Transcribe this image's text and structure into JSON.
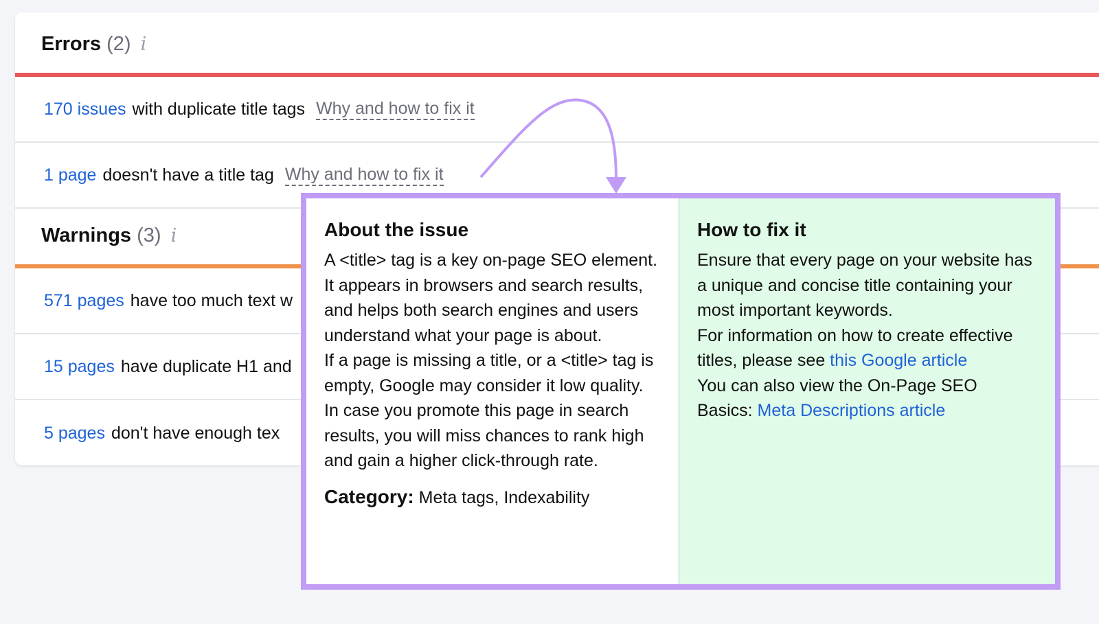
{
  "errors": {
    "title": "Errors",
    "count": "(2)",
    "info_icon": "info-icon",
    "accent": "#e85656",
    "rows": [
      {
        "link": "170 issues",
        "text": "with duplicate title tags",
        "why": "Why and how to fix it"
      },
      {
        "link": "1 page",
        "text": "doesn't have a title tag",
        "why": "Why and how to fix it"
      }
    ]
  },
  "warnings": {
    "title": "Warnings",
    "count": "(3)",
    "info_icon": "info-icon",
    "accent": "#f0914a",
    "rows": [
      {
        "link": "571 pages",
        "text": "have too much text w"
      },
      {
        "link": "15 pages",
        "text": "have duplicate H1 and"
      },
      {
        "link": "5 pages",
        "text": "don't have enough tex"
      }
    ]
  },
  "popup": {
    "about_title": "About the issue",
    "about_p1": "A <title> tag is a key on-page SEO element. It appears in browsers and search results, and helps both search engines and users understand what your page is about.",
    "about_p2": "If a page is missing a title, or a <title> tag is empty, Google may consider it low quality. In case you promote this page in search results, you will miss chances to rank high and gain a higher click-through rate.",
    "category_label": "Category:",
    "category_value": "Meta tags, Indexability",
    "fix_title": "How to fix it",
    "fix_p1": "Ensure that every page on your website has a unique and concise title containing your most important keywords.",
    "fix_p2": "For information on how to create effective titles, please see",
    "fix_link1": "this Google article",
    "fix_p3": "You can also view the On-Page SEO Basics:",
    "fix_link2": "Meta Descriptions article",
    "border_color": "#c09cf5",
    "fix_bg": "#e0fbe7"
  }
}
